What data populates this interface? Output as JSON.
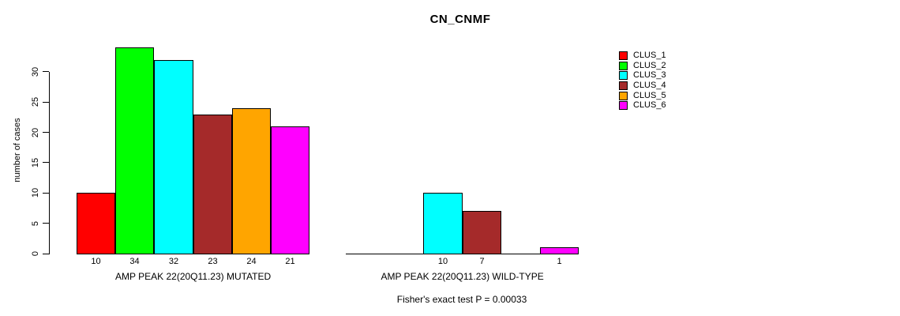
{
  "chart_data": {
    "type": "bar",
    "title": "CN_CNMF",
    "ylabel": "number of cases",
    "ylim": [
      0,
      30
    ],
    "yticks": [
      0,
      5,
      10,
      15,
      20,
      25,
      30
    ],
    "grid": false,
    "legend_position": "right",
    "clusters": [
      {
        "name": "CLUS_1",
        "color": "#FF0000"
      },
      {
        "name": "CLUS_2",
        "color": "#00FF00"
      },
      {
        "name": "CLUS_3",
        "color": "#00FFFF"
      },
      {
        "name": "CLUS_4",
        "color": "#A52A2A"
      },
      {
        "name": "CLUS_5",
        "color": "#FFA500"
      },
      {
        "name": "CLUS_6",
        "color": "#FF00FF"
      }
    ],
    "groups": [
      {
        "label": "AMP PEAK 22(20Q11.23) MUTATED",
        "values": [
          10,
          34,
          32,
          23,
          24,
          21
        ]
      },
      {
        "label": "AMP PEAK 22(20Q11.23) WILD-TYPE",
        "values": [
          0,
          0,
          10,
          7,
          0,
          1
        ]
      }
    ],
    "footer": "Fisher's exact test P = 0.00033"
  }
}
